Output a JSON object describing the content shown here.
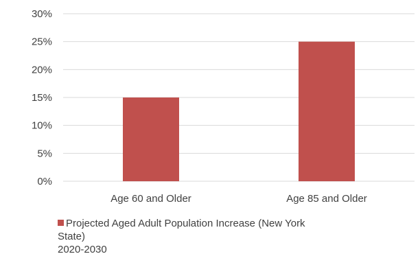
{
  "chart_data": {
    "type": "bar",
    "categories": [
      "Age 60 and Older",
      "Age 85 and Older"
    ],
    "series": [
      {
        "name": "Projected Aged Adult Population Increase (New York State) 2020-2030",
        "values": [
          15,
          25
        ]
      }
    ],
    "ylim": [
      0,
      30
    ],
    "yticks": [
      "0%",
      "5%",
      "10%",
      "15%",
      "20%",
      "25%",
      "30%"
    ],
    "ytick_values": [
      0,
      5,
      10,
      15,
      20,
      25,
      30
    ],
    "grid": true,
    "legend_position": "bottom",
    "bar_color": "#c0504d",
    "grid_color": "#d9d9d9",
    "legend": {
      "line1": "Projected Aged Adult Population Increase (New York",
      "line2": "State)",
      "line3": "2020-2030"
    }
  }
}
